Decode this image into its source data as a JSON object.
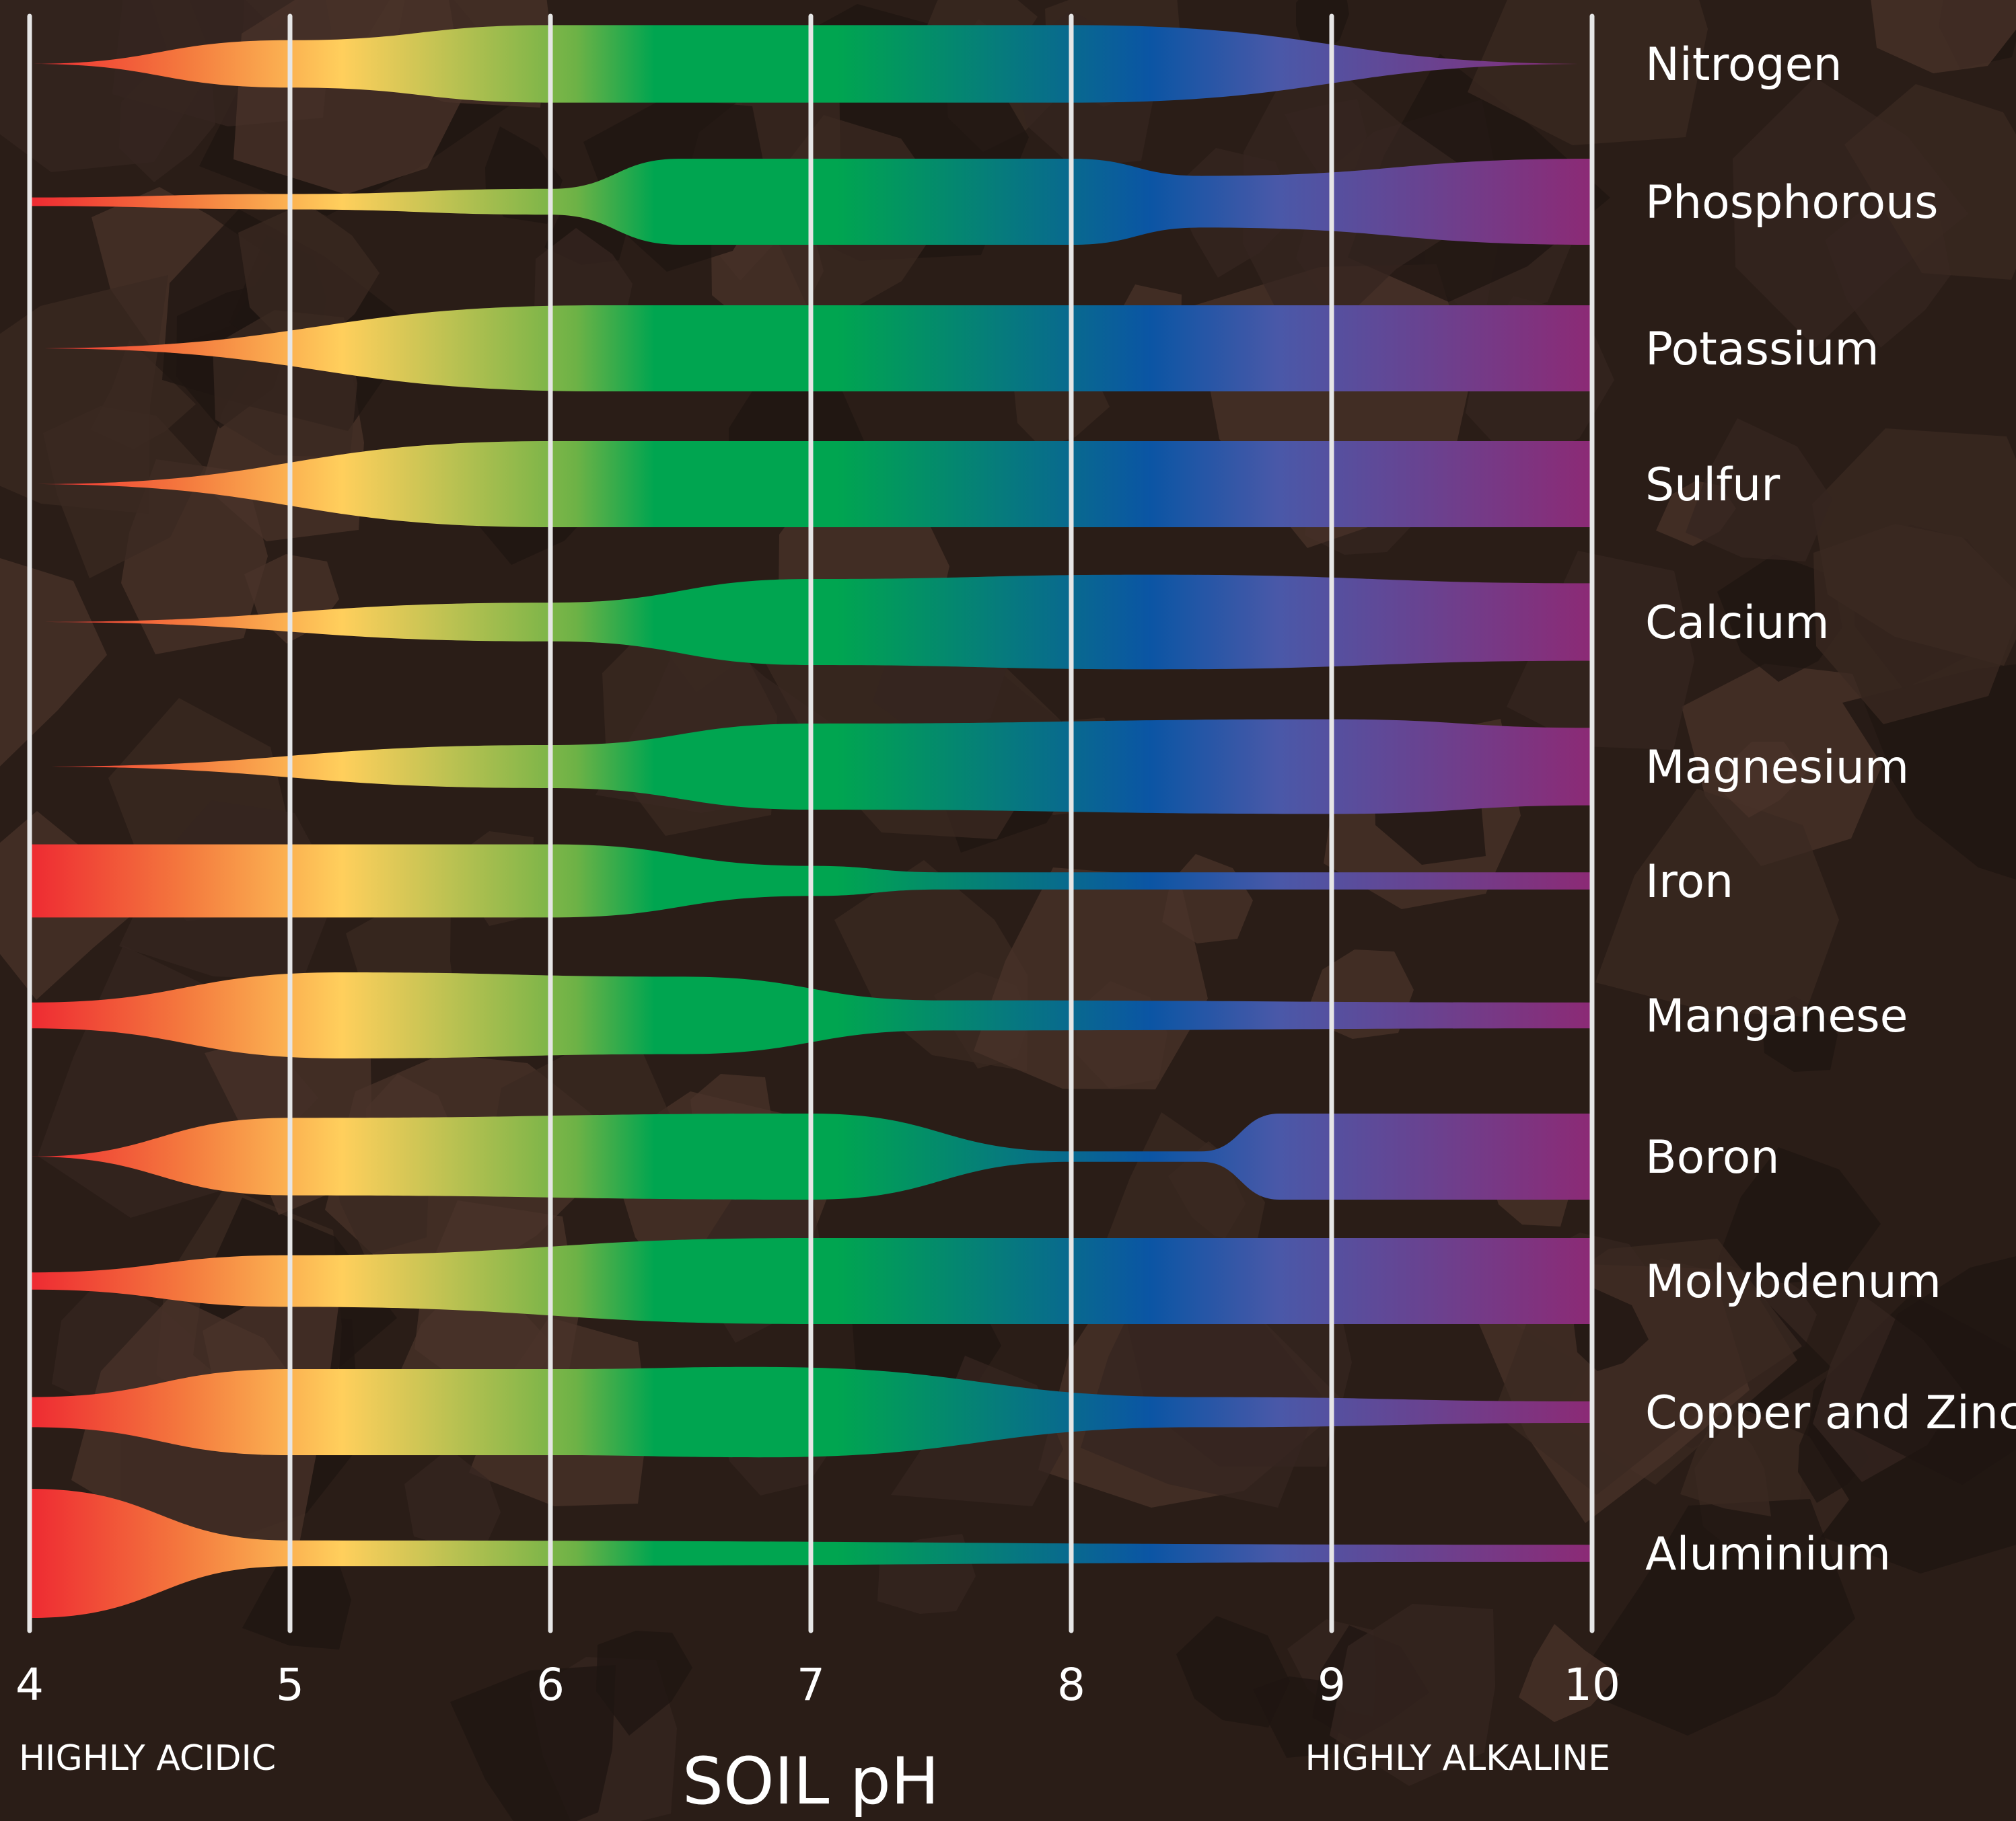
{
  "colors": {
    "background": "#2a1d17",
    "camouflage": [
      "#3b2a22",
      "#4a332a",
      "#1f1612",
      "#352520"
    ],
    "gridline": "#e6e6e6",
    "gradient": [
      {
        "ph": 4.0,
        "color": "#ee2a32"
      },
      {
        "ph": 4.6,
        "color": "#f47a3e"
      },
      {
        "ph": 5.2,
        "color": "#ffcf5c"
      },
      {
        "ph": 6.1,
        "color": "#6db246"
      },
      {
        "ph": 6.4,
        "color": "#00a550"
      },
      {
        "ph": 7.1,
        "color": "#00a550"
      },
      {
        "ph": 8.3,
        "color": "#0b55a4"
      },
      {
        "ph": 8.8,
        "color": "#4a58a8"
      },
      {
        "ph": 10.0,
        "color": "#8c2a75"
      }
    ]
  },
  "chart_data": {
    "type": "area",
    "title": "",
    "xlabel": "SOIL pH",
    "ylabel": "",
    "xlim": [
      4,
      10
    ],
    "x_ticks": [
      "4",
      "5",
      "6",
      "7",
      "8",
      "9",
      "10"
    ],
    "end_labels": {
      "left": "HIGHLY ACIDIC",
      "right": "HIGHLY ALKALINE"
    },
    "grid": true,
    "series": [
      {
        "name": "Nitrogen",
        "ph": [
          4,
          5,
          6,
          6.2,
          8,
          10
        ],
        "availability": [
          0.0,
          0.55,
          0.9,
          0.9,
          0.9,
          0.0
        ]
      },
      {
        "name": "Phosphorous",
        "ph": [
          4,
          5,
          6,
          6.5,
          8,
          8.5,
          10
        ],
        "availability": [
          0.1,
          0.18,
          0.3,
          1.0,
          1.0,
          0.6,
          1.0
        ]
      },
      {
        "name": "Potassium",
        "ph": [
          4,
          6.2,
          10
        ],
        "availability": [
          0.0,
          1.0,
          1.0
        ]
      },
      {
        "name": "Sulfur",
        "ph": [
          4,
          6,
          10
        ],
        "availability": [
          0.0,
          1.0,
          1.0
        ]
      },
      {
        "name": "Calcium",
        "ph": [
          4,
          6,
          7,
          8.3,
          10
        ],
        "availability": [
          0.0,
          0.45,
          1.0,
          1.1,
          0.9
        ]
      },
      {
        "name": "Magnesium",
        "ph": [
          4,
          6,
          7,
          9,
          10
        ],
        "availability": [
          0.0,
          0.5,
          1.0,
          1.1,
          0.9
        ]
      },
      {
        "name": "Iron",
        "ph": [
          4,
          6,
          7,
          7.5,
          10
        ],
        "availability": [
          0.85,
          0.85,
          0.35,
          0.2,
          0.2
        ]
      },
      {
        "name": "Manganese",
        "ph": [
          4,
          5.2,
          6.5,
          7.5,
          10
        ],
        "availability": [
          0.3,
          1.0,
          0.9,
          0.35,
          0.3
        ]
      },
      {
        "name": "Boron",
        "ph": [
          4,
          5,
          7,
          8,
          8.5,
          8.8,
          10
        ],
        "availability": [
          0.0,
          0.9,
          1.0,
          0.12,
          0.12,
          1.0,
          1.0
        ]
      },
      {
        "name": "Molybdenum",
        "ph": [
          4,
          5,
          7,
          10
        ],
        "availability": [
          0.2,
          0.6,
          1.0,
          1.0
        ]
      },
      {
        "name": "Copper and Zinc",
        "ph": [
          4,
          5,
          6,
          6.8,
          8.5,
          10
        ],
        "availability": [
          0.35,
          1.0,
          1.0,
          1.05,
          0.35,
          0.25
        ]
      },
      {
        "name": "Aluminium",
        "ph": [
          4,
          5,
          10
        ],
        "availability": [
          1.5,
          0.3,
          0.2
        ]
      }
    ]
  }
}
